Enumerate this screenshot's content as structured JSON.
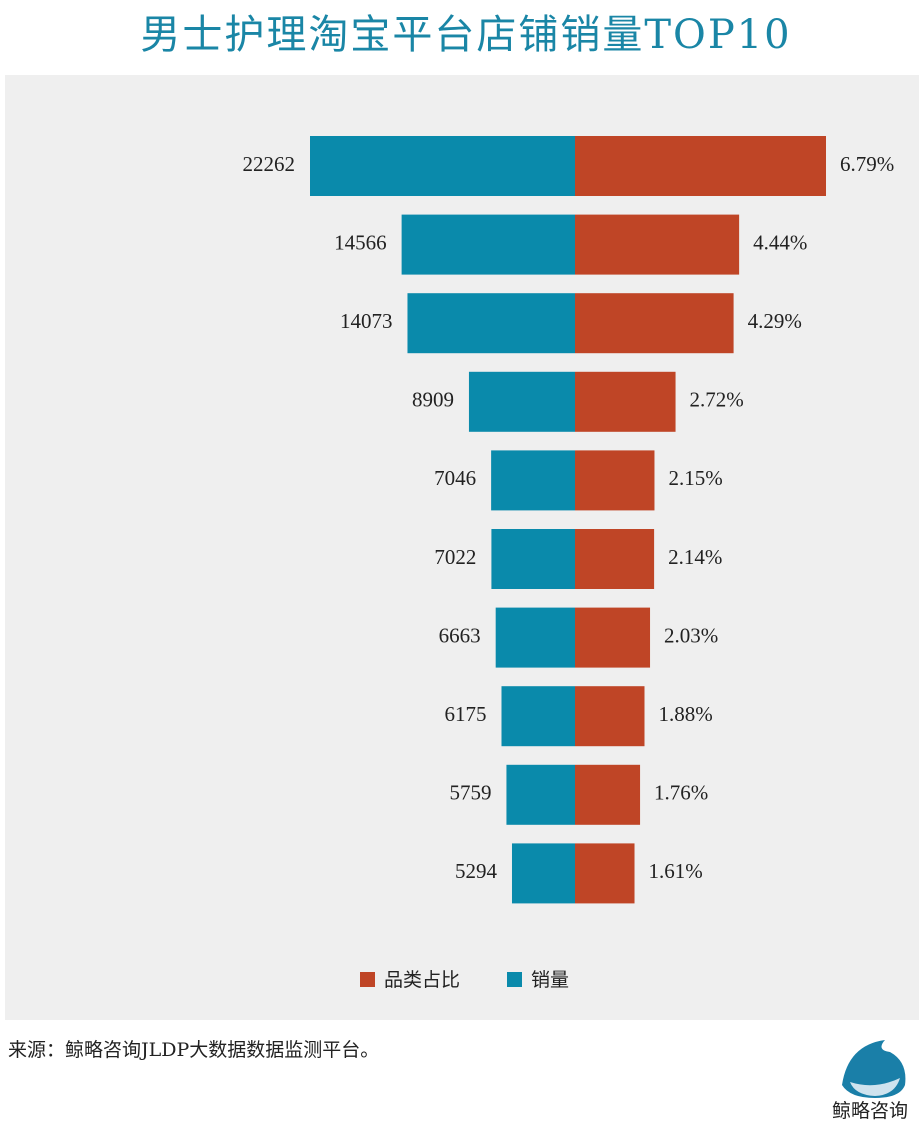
{
  "chart_data": {
    "type": "butterfly",
    "title": "男士护理淘宝平台店铺销量TOP10",
    "series": [
      {
        "name": "品类占比",
        "color": "#bf4526",
        "values": [
          6.79,
          4.44,
          4.29,
          2.72,
          2.15,
          2.14,
          2.03,
          1.88,
          1.76,
          1.61
        ],
        "value_labels": [
          "6.79%",
          "4.44%",
          "4.29%",
          "2.72%",
          "2.15%",
          "2.14%",
          "2.03%",
          "1.88%",
          "1.76%",
          "1.61%"
        ]
      },
      {
        "name": "销量",
        "color": "#0a8aab",
        "values": [
          22262,
          14566,
          14073,
          8909,
          7046,
          7022,
          6663,
          6175,
          5759,
          5294
        ]
      }
    ]
  },
  "source": "来源：鲸略咨询JLDP大数据数据监测平台。",
  "logo_text": "鲸略咨询"
}
